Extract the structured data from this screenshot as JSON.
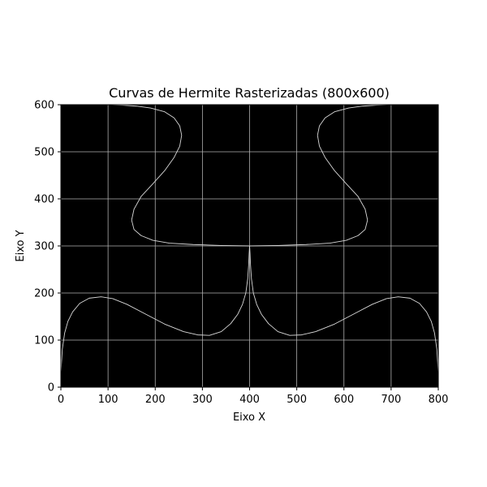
{
  "chart_data": {
    "type": "line",
    "title": "Curvas de Hermite Rasterizadas (800x600)",
    "xlabel": "Eixo X",
    "ylabel": "Eixo Y",
    "xlim": [
      0,
      800
    ],
    "ylim": [
      0,
      600
    ],
    "xticks": [
      "0",
      "100",
      "200",
      "300",
      "400",
      "500",
      "600",
      "700",
      "800"
    ],
    "yticks": [
      "0",
      "100",
      "200",
      "300",
      "400",
      "500",
      "600"
    ],
    "grid": true,
    "background": "#000000",
    "line_color": "#d9d9d9",
    "grid_color": "#b0b0b0",
    "series": [
      {
        "x": [
          0,
          3,
          8,
          15,
          25,
          40,
          60,
          85,
          110,
          140,
          180,
          220,
          260,
          290,
          315,
          340,
          360,
          375,
          385,
          392,
          396,
          398,
          399,
          400
        ],
        "y": [
          30,
          80,
          115,
          140,
          160,
          178,
          189,
          192,
          188,
          176,
          155,
          134,
          118,
          111,
          110,
          118,
          135,
          155,
          176,
          200,
          230,
          260,
          283,
          300
        ]
      },
      {
        "x": [
          400,
          401,
          402,
          404,
          408,
          415,
          425,
          440,
          460,
          485,
          510,
          540,
          580,
          620,
          660,
          690,
          715,
          740,
          760,
          775,
          785,
          792,
          797,
          800
        ],
        "y": [
          300,
          283,
          260,
          230,
          200,
          176,
          155,
          135,
          118,
          110,
          111,
          118,
          134,
          155,
          176,
          188,
          192,
          189,
          178,
          160,
          140,
          115,
          80,
          30
        ]
      },
      {
        "x": [
          400,
          340,
          280,
          230,
          195,
          170,
          155,
          150,
          155,
          170,
          195,
          220,
          240,
          252,
          256,
          252,
          240,
          220,
          190,
          160,
          130,
          105
        ],
        "y": [
          300,
          301,
          303,
          306,
          312,
          322,
          335,
          355,
          378,
          405,
          432,
          460,
          488,
          512,
          535,
          555,
          572,
          585,
          593,
          597,
          599,
          600
        ]
      },
      {
        "x": [
          400,
          460,
          520,
          570,
          605,
          630,
          645,
          650,
          645,
          630,
          605,
          580,
          560,
          548,
          544,
          548,
          560,
          580,
          610,
          640,
          670,
          695
        ],
        "y": [
          300,
          301,
          303,
          306,
          312,
          322,
          335,
          355,
          378,
          405,
          432,
          460,
          488,
          512,
          535,
          555,
          572,
          585,
          593,
          597,
          599,
          600
        ]
      }
    ]
  }
}
